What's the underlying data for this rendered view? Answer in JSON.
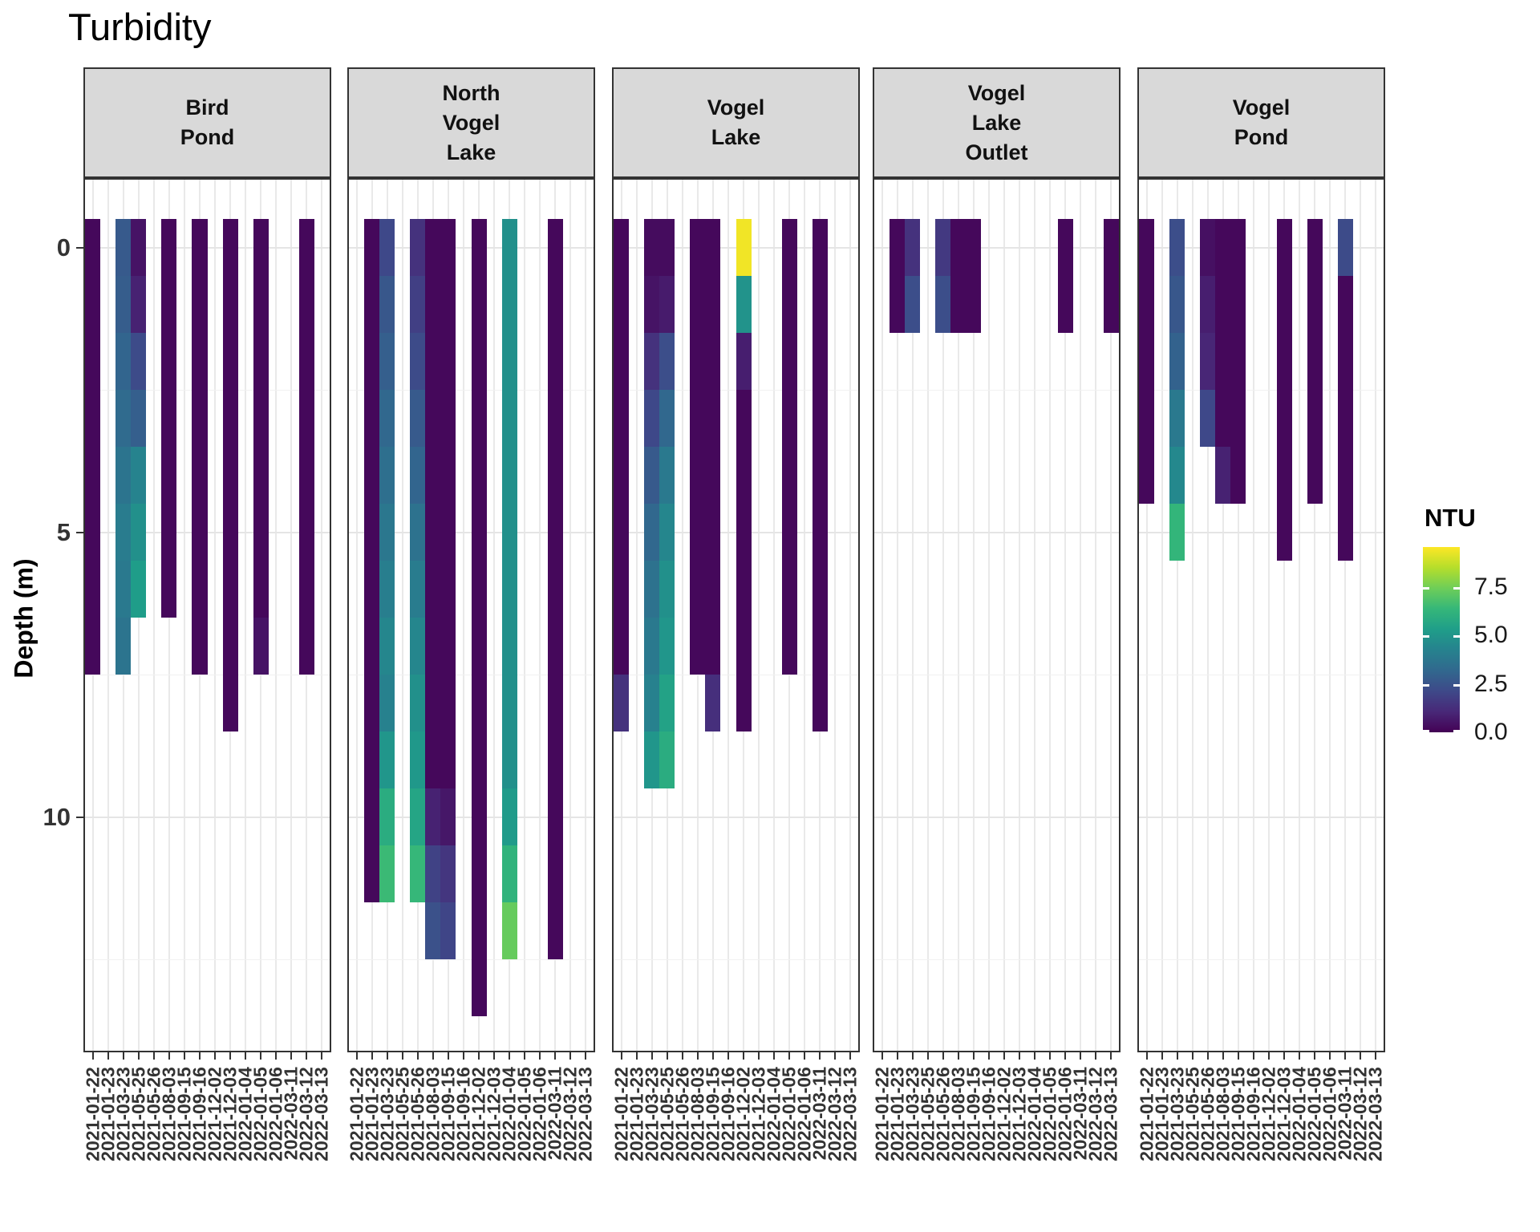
{
  "title": "Turbidity",
  "y_axis": {
    "label": "Depth (m)",
    "tick_labels": [
      "0",
      "5",
      "10"
    ],
    "tick_values": [
      0,
      5,
      10
    ],
    "minor_gridlines": [
      2.5,
      7.5,
      12.5
    ]
  },
  "legend": {
    "title": "NTU",
    "tick_labels": [
      "7.5",
      "5.0",
      "2.5",
      "0.0"
    ],
    "tick_values": [
      7.5,
      5.0,
      2.5,
      0.0
    ],
    "domain_max": 9.58,
    "viridis_stops": [
      "#440154",
      "#482878",
      "#3e4989",
      "#31688e",
      "#26828e",
      "#1f9e89",
      "#35b779",
      "#6ece58",
      "#b5de2b",
      "#fde725"
    ]
  },
  "chart_data": {
    "type": "heatmap",
    "title": "Turbidity",
    "ylabel": "Depth (m)",
    "color_label": "NTU",
    "tile_depth_m": 1,
    "x_categories": [
      "2021-01-22",
      "2021-01-23",
      "2021-03-23",
      "2021-05-25",
      "2021-05-26",
      "2021-08-03",
      "2021-09-15",
      "2021-09-16",
      "2021-12-02",
      "2021-12-03",
      "2022-01-04",
      "2022-01-05",
      "2022-01-06",
      "2022-03-11",
      "2022-03-12",
      "2022-03-13"
    ],
    "facets": [
      {
        "site": "Bird Pond",
        "strip_label": "Bird\nPond",
        "profiles": [
          {
            "date": "2021-01-22",
            "ntu_by_depth": [
              0.2,
              0.2,
              0.2,
              0.2,
              0.2,
              0.2,
              0.2,
              0.2
            ]
          },
          {
            "date": "2021-03-23",
            "ntu_by_depth": [
              2.7,
              2.8,
              3.1,
              3.3,
              3.7,
              4.0,
              3.9,
              3.7
            ]
          },
          {
            "date": "2021-05-25",
            "ntu_by_depth": [
              0.5,
              0.9,
              2.2,
              2.9,
              4.3,
              4.8,
              5.3
            ]
          },
          {
            "date": "2021-08-03",
            "ntu_by_depth": [
              0.2,
              0.2,
              0.2,
              0.2,
              0.2,
              0.2,
              0.2
            ]
          },
          {
            "date": "2021-09-16",
            "ntu_by_depth": [
              0.2,
              0.2,
              0.2,
              0.2,
              0.2,
              0.2,
              0.2,
              0.2
            ]
          },
          {
            "date": "2021-12-03",
            "ntu_by_depth": [
              0.2,
              0.2,
              0.2,
              0.2,
              0.2,
              0.2,
              0.2,
              0.2,
              0.2
            ]
          },
          {
            "date": "2022-01-05",
            "ntu_by_depth": [
              0.2,
              0.2,
              0.2,
              0.2,
              0.2,
              0.2,
              0.2,
              0.5
            ]
          },
          {
            "date": "2022-03-12",
            "ntu_by_depth": [
              0.2,
              0.2,
              0.2,
              0.2,
              0.2,
              0.2,
              0.2,
              0.2
            ]
          }
        ]
      },
      {
        "site": "North Vogel Lake",
        "strip_label": "North\nVogel\nLake",
        "profiles": [
          {
            "date": "2021-01-23",
            "ntu_by_depth": [
              0.2,
              0.2,
              0.2,
              0.2,
              0.2,
              0.2,
              0.2,
              0.2,
              0.2,
              0.2,
              0.2,
              0.2
            ]
          },
          {
            "date": "2021-03-23",
            "ntu_by_depth": [
              2.1,
              2.6,
              2.9,
              3.2,
              3.5,
              3.8,
              4.1,
              4.4,
              4.2,
              5.0,
              5.9,
              6.5
            ]
          },
          {
            "date": "2021-05-26",
            "ntu_by_depth": [
              1.4,
              1.8,
              2.2,
              2.7,
              3.1,
              3.6,
              4.0,
              4.4,
              4.8,
              5.1,
              5.6,
              6.4
            ]
          },
          {
            "date": "2021-08-03",
            "ntu_by_depth": [
              0.2,
              0.2,
              0.2,
              0.2,
              0.2,
              0.2,
              0.2,
              0.2,
              0.2,
              0.2,
              0.9,
              1.9,
              2.4
            ]
          },
          {
            "date": "2021-09-15",
            "ntu_by_depth": [
              0.2,
              0.2,
              0.2,
              0.2,
              0.2,
              0.2,
              0.2,
              0.2,
              0.2,
              0.2,
              0.6,
              1.5,
              2.0
            ]
          },
          {
            "date": "2021-12-02",
            "ntu_by_depth": [
              0.2,
              0.2,
              0.2,
              0.2,
              0.2,
              0.2,
              0.2,
              0.2,
              0.2,
              0.2,
              0.2,
              0.2,
              0.2,
              0.2
            ]
          },
          {
            "date": "2022-01-04",
            "ntu_by_depth": [
              4.8,
              4.8,
              4.8,
              4.8,
              4.8,
              4.8,
              4.8,
              4.8,
              4.8,
              4.8,
              5.2,
              6.2,
              7.3
            ]
          },
          {
            "date": "2022-03-11",
            "ntu_by_depth": [
              0.2,
              0.2,
              0.2,
              0.2,
              0.2,
              0.2,
              0.2,
              0.2,
              0.2,
              0.2,
              0.2,
              0.2,
              0.2
            ]
          }
        ]
      },
      {
        "site": "Vogel Lake",
        "strip_label": "Vogel\nLake",
        "profiles": [
          {
            "date": "2021-01-22",
            "ntu_by_depth": [
              0.2,
              0.2,
              0.2,
              0.2,
              0.2,
              0.2,
              0.2,
              0.2,
              1.4
            ]
          },
          {
            "date": "2021-03-23",
            "ntu_by_depth": [
              0.3,
              0.5,
              1.4,
              2.1,
              2.7,
              3.2,
              3.6,
              3.9,
              4.2,
              5.0
            ]
          },
          {
            "date": "2021-05-25",
            "ntu_by_depth": [
              0.3,
              0.7,
              2.3,
              3.2,
              3.9,
              4.4,
              4.8,
              5.0,
              5.5,
              5.9
            ]
          },
          {
            "date": "2021-08-03",
            "ntu_by_depth": [
              0.2,
              0.2,
              0.2,
              0.2,
              0.2,
              0.2,
              0.2,
              0.2
            ]
          },
          {
            "date": "2021-09-15",
            "ntu_by_depth": [
              0.2,
              0.2,
              0.2,
              0.2,
              0.2,
              0.2,
              0.2,
              0.2,
              1.3
            ]
          },
          {
            "date": "2021-12-02",
            "ntu_by_depth": [
              9.4,
              4.9,
              0.8,
              0.2,
              0.2,
              0.2,
              0.2,
              0.2,
              0.2
            ]
          },
          {
            "date": "2022-01-05",
            "ntu_by_depth": [
              0.2,
              0.2,
              0.2,
              0.2,
              0.2,
              0.2,
              0.2,
              0.2
            ]
          },
          {
            "date": "2022-03-11",
            "ntu_by_depth": [
              0.2,
              0.2,
              0.2,
              0.2,
              0.2,
              0.2,
              0.2,
              0.2,
              0.2
            ]
          }
        ]
      },
      {
        "site": "Vogel Lake Outlet",
        "strip_label": "Vogel\nLake\nOutlet",
        "profiles": [
          {
            "date": "2021-01-23",
            "ntu_by_depth": [
              0.2,
              0.2
            ]
          },
          {
            "date": "2021-03-23",
            "ntu_by_depth": [
              1.4,
              2.3
            ]
          },
          {
            "date": "2021-05-26",
            "ntu_by_depth": [
              1.6,
              2.3
            ]
          },
          {
            "date": "2021-08-03",
            "ntu_by_depth": [
              0.2,
              0.2
            ]
          },
          {
            "date": "2021-09-15",
            "ntu_by_depth": [
              0.2,
              0.2
            ]
          },
          {
            "date": "2022-01-06",
            "ntu_by_depth": [
              0.2,
              0.2
            ]
          },
          {
            "date": "2022-03-13",
            "ntu_by_depth": [
              0.2,
              0.2
            ]
          }
        ]
      },
      {
        "site": "Vogel Pond",
        "strip_label": "Vogel\nPond",
        "profiles": [
          {
            "date": "2021-01-22",
            "ntu_by_depth": [
              0.2,
              0.2,
              0.2,
              0.2,
              0.2
            ]
          },
          {
            "date": "2021-03-23",
            "ntu_by_depth": [
              2.3,
              2.6,
              3.0,
              3.9,
              4.5,
              6.3
            ]
          },
          {
            "date": "2021-05-26",
            "ntu_by_depth": [
              0.4,
              0.8,
              1.0,
              2.1
            ]
          },
          {
            "date": "2021-08-03",
            "ntu_by_depth": [
              0.2,
              0.2,
              0.2,
              0.2,
              0.9
            ]
          },
          {
            "date": "2021-09-15",
            "ntu_by_depth": [
              0.2,
              0.2,
              0.2,
              0.2,
              0.2
            ]
          },
          {
            "date": "2021-12-03",
            "ntu_by_depth": [
              0.2,
              0.2,
              0.2,
              0.2,
              0.2,
              0.2
            ]
          },
          {
            "date": "2022-01-05",
            "ntu_by_depth": [
              0.2,
              0.2,
              0.2,
              0.2,
              0.2
            ]
          },
          {
            "date": "2022-03-11",
            "ntu_by_depth": [
              2.2,
              0.2,
              0.2,
              0.2,
              0.2,
              0.2
            ]
          }
        ]
      }
    ]
  }
}
